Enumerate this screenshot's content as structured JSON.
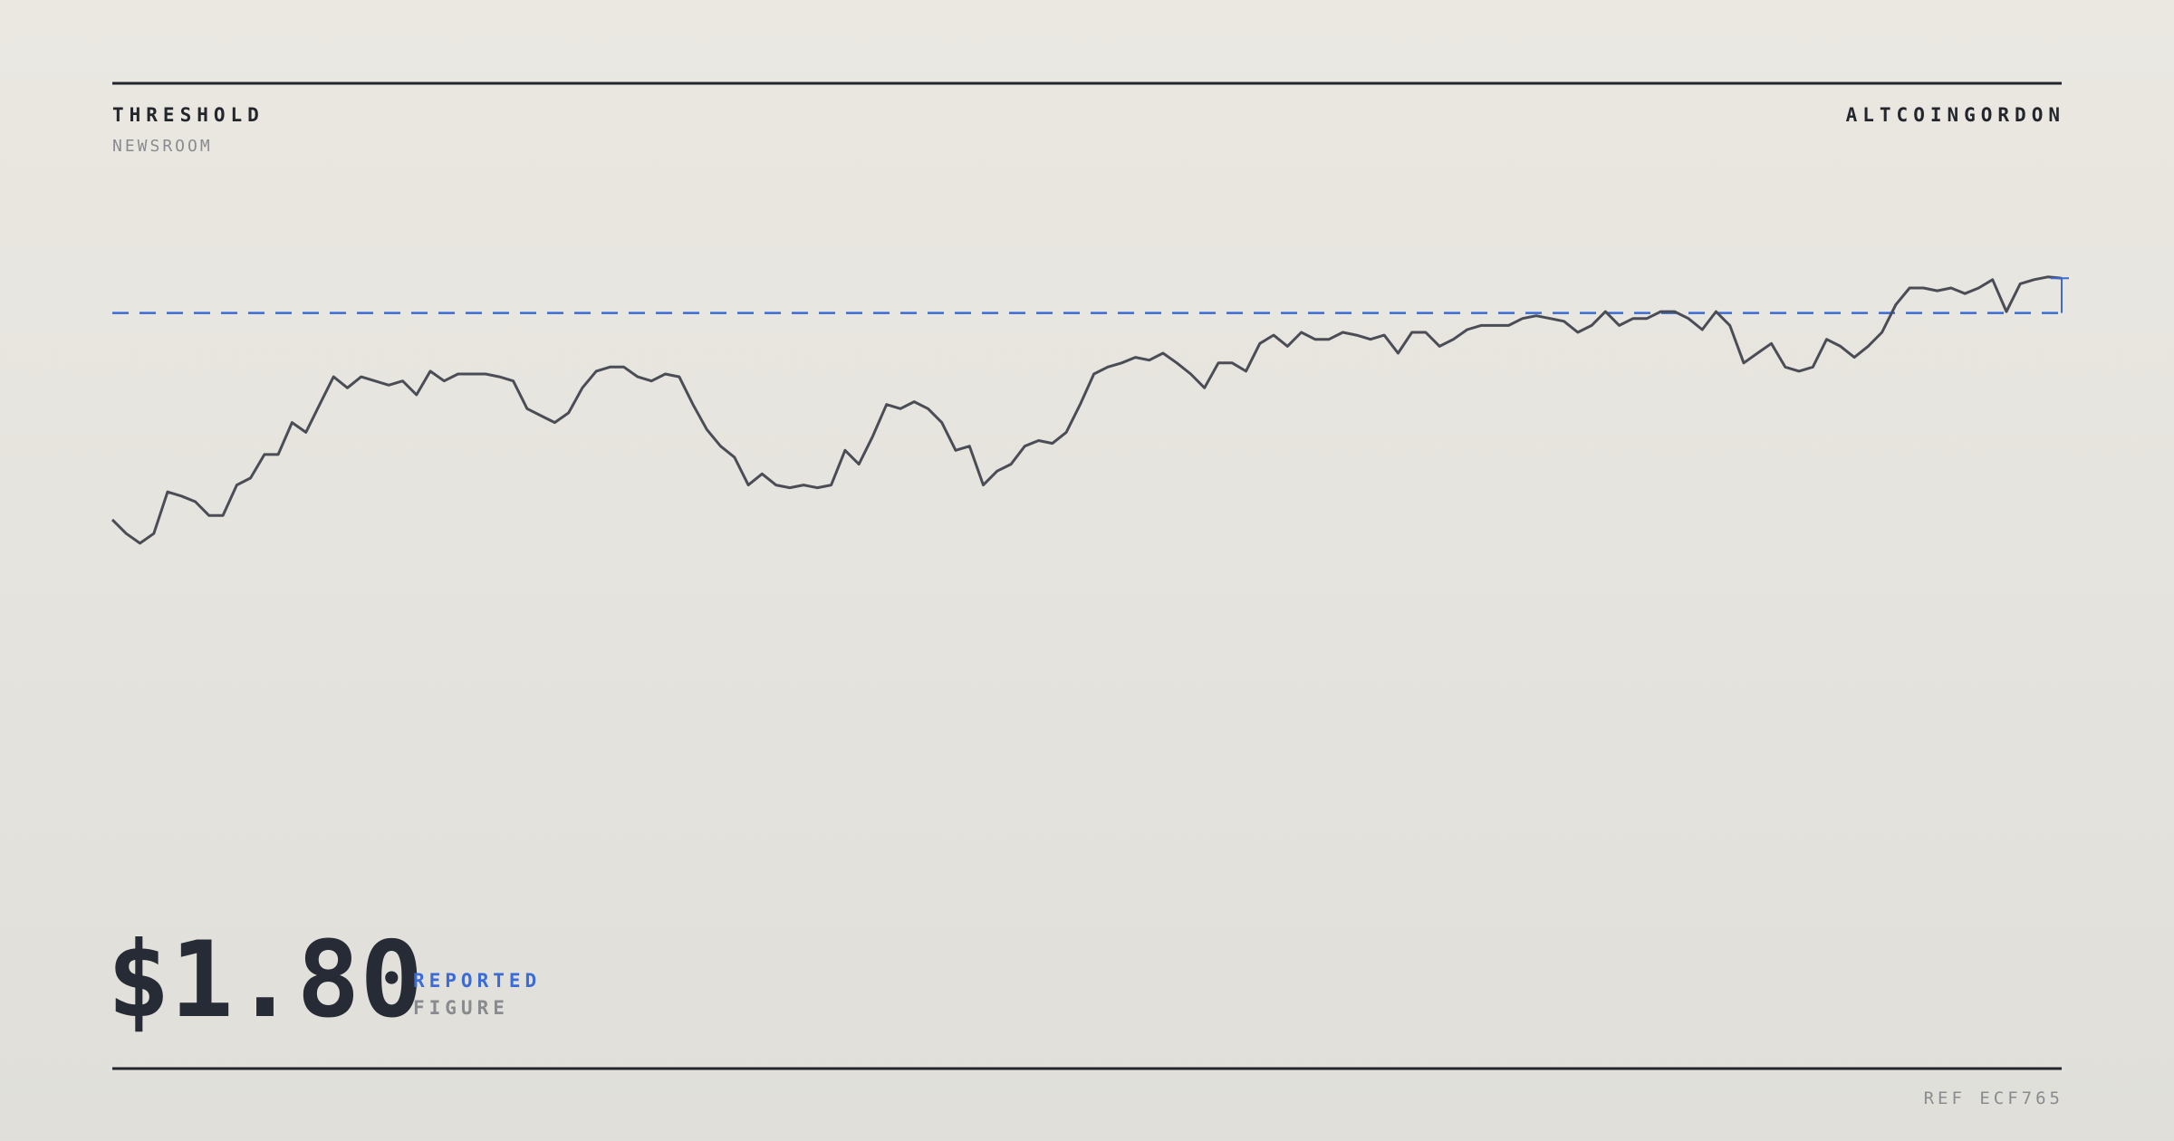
{
  "header": {
    "brand": "THRESHOLD",
    "section": "NEWSROOM",
    "author": "ALTCOINGORDON"
  },
  "chart_data": {
    "type": "line",
    "color": "#4a4d55",
    "threshold": 80,
    "threshold_color": "#3a6bd6",
    "ylim": [
      0,
      100
    ],
    "values": [
      20.4,
      16.4,
      13.6,
      16.4,
      28.4,
      27.2,
      25.6,
      21.6,
      21.6,
      30.4,
      32.4,
      39.2,
      39.2,
      48.4,
      45.6,
      53.6,
      61.6,
      58.4,
      61.6,
      60.4,
      59.2,
      60.4,
      56.4,
      63.2,
      60.4,
      62.4,
      62.4,
      62.4,
      61.6,
      60.4,
      52.4,
      50.4,
      48.4,
      51.2,
      58.4,
      63.2,
      64.4,
      64.4,
      61.6,
      60.4,
      62.4,
      61.6,
      53.6,
      46.4,
      41.6,
      38.4,
      30.4,
      33.6,
      30.4,
      29.6,
      30.4,
      29.6,
      30.4,
      40.4,
      36.4,
      44.4,
      53.6,
      52.4,
      54.4,
      52.4,
      48.4,
      40.4,
      41.6,
      30.4,
      34.4,
      36.4,
      41.6,
      43.2,
      42.4,
      45.6,
      53.6,
      62.4,
      64.4,
      65.6,
      67.2,
      66.4,
      68.4,
      65.6,
      62.4,
      58.4,
      65.6,
      65.6,
      63.2,
      71.2,
      73.6,
      70.4,
      74.4,
      72.4,
      72.4,
      74.4,
      73.6,
      72.4,
      73.6,
      68.4,
      74.4,
      74.4,
      70.4,
      72.4,
      75.2,
      76.4,
      76.4,
      76.4,
      78.4,
      79.2,
      78.4,
      77.6,
      74.4,
      76.4,
      80.4,
      76.4,
      78.4,
      78.4,
      80.4,
      80.4,
      78.4,
      75.2,
      80.4,
      76.4,
      65.6,
      68.4,
      71.2,
      64.4,
      63.2,
      64.4,
      72.4,
      70.4,
      67.2,
      70.4,
      74.4,
      82.4,
      87.2,
      87.2,
      86.4,
      87.2,
      85.6,
      87.2,
      89.6,
      80.4,
      88.4,
      89.6,
      90.4,
      90
    ]
  },
  "figure": {
    "value": "$1.80",
    "label": "REPORTED",
    "sublabel": "FIGURE"
  },
  "footer": {
    "ref": "REF ECF765"
  }
}
